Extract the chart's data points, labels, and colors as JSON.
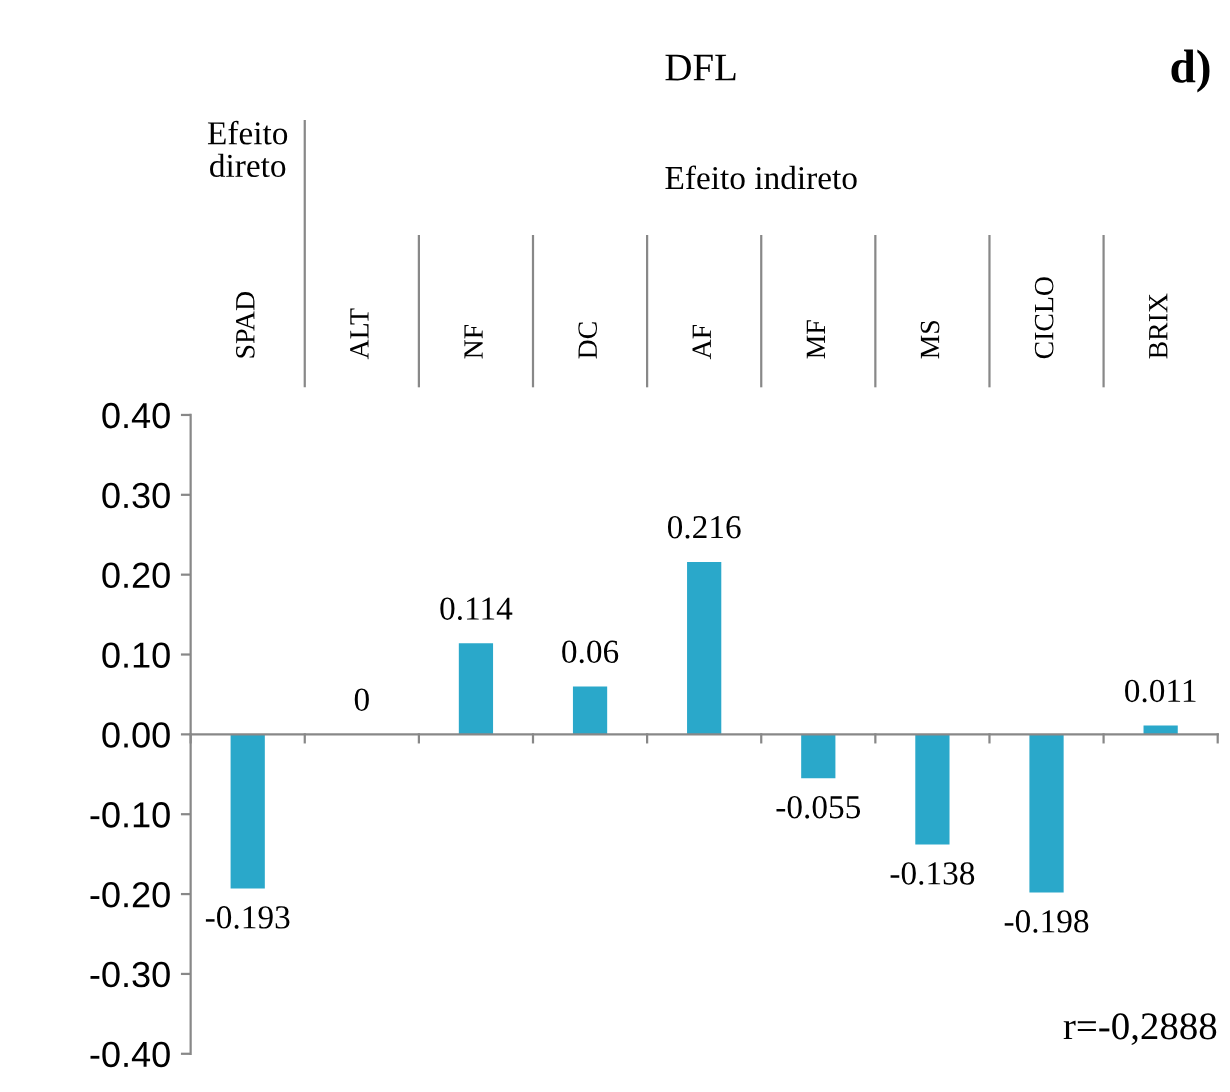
{
  "chart_data": {
    "type": "bar",
    "title": "DFL",
    "categories": [
      "SPAD",
      "ALT",
      "NF",
      "DC",
      "AF",
      "MF",
      "MS",
      "CICLO",
      "BRIX"
    ],
    "values": [
      -0.193,
      0,
      0.114,
      0.06,
      0.216,
      -0.055,
      -0.138,
      -0.198,
      0.011
    ],
    "color": "#2aa8ca",
    "ylim": [
      -0.4,
      0.4
    ],
    "yticks": [
      {
        "value": -0.4,
        "label": "-0.40"
      },
      {
        "value": -0.3,
        "label": "-0.30"
      },
      {
        "value": -0.2,
        "label": "-0.20"
      },
      {
        "value": -0.1,
        "label": "-0.10"
      },
      {
        "value": 0,
        "label": "0.00"
      },
      {
        "value": 0.1,
        "label": "0.10"
      },
      {
        "value": 0.2,
        "label": "0.20"
      },
      {
        "value": 0.3,
        "label": "0.30"
      },
      {
        "value": 0.4,
        "label": "0.40"
      }
    ],
    "data_labels": true,
    "legend": false,
    "annotations": [
      "d)",
      "Efeito\ndireto",
      "Efeito indireto",
      "r=-0,2888"
    ]
  }
}
